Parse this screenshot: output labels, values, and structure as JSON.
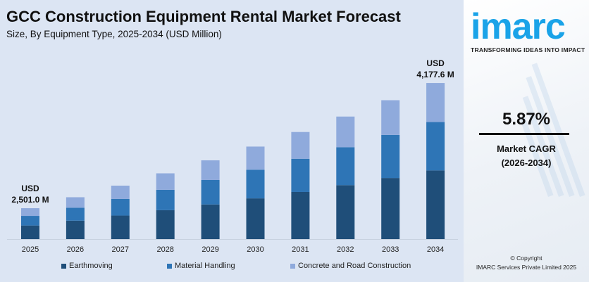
{
  "chart_data": {
    "type": "bar",
    "stacked": true,
    "title": "GCC Construction Equipment Rental Market Forecast",
    "subtitle": "Size, By Equipment Type, 2025-2034 (USD Million)",
    "categories": [
      "2025",
      "2026",
      "2027",
      "2028",
      "2029",
      "2030",
      "2031",
      "2032",
      "2033",
      "2034"
    ],
    "series": [
      {
        "name": "Earthmoving",
        "color": "#1f4e79",
        "values": [
          1100.4,
          1165.0,
          1233.4,
          1305.8,
          1382.5,
          1463.6,
          1549.5,
          1640.5,
          1736.8,
          1838.1
        ]
      },
      {
        "name": "Material Handling",
        "color": "#2e75b6",
        "values": [
          775.3,
          820.8,
          869.0,
          920.0,
          974.0,
          1031.2,
          1091.7,
          1155.8,
          1223.7,
          1295.1
        ]
      },
      {
        "name": "Concrete and Road Construction",
        "color": "#8faadc",
        "values": [
          625.3,
          662.0,
          700.8,
          742.0,
          785.5,
          831.6,
          880.5,
          932.1,
          986.8,
          1044.4
        ]
      }
    ],
    "annotations": [
      {
        "category": "2025",
        "line1": "USD",
        "line2": "2,501.0 M"
      },
      {
        "category": "2034",
        "line1": "USD",
        "line2": "4,177.6 M"
      }
    ],
    "grid": false,
    "legend_position": "bottom"
  },
  "brand": {
    "logo": "imarc",
    "tagline": "TRANSFORMING IDEAS INTO IMPACT",
    "color": "#1aa3e8"
  },
  "cagr": {
    "value": "5.87%",
    "label": "Market CAGR",
    "period": "(2026-2034)"
  },
  "copyright": {
    "line1": "© Copyright",
    "line2": "IMARC Services Private Limited 2025"
  }
}
